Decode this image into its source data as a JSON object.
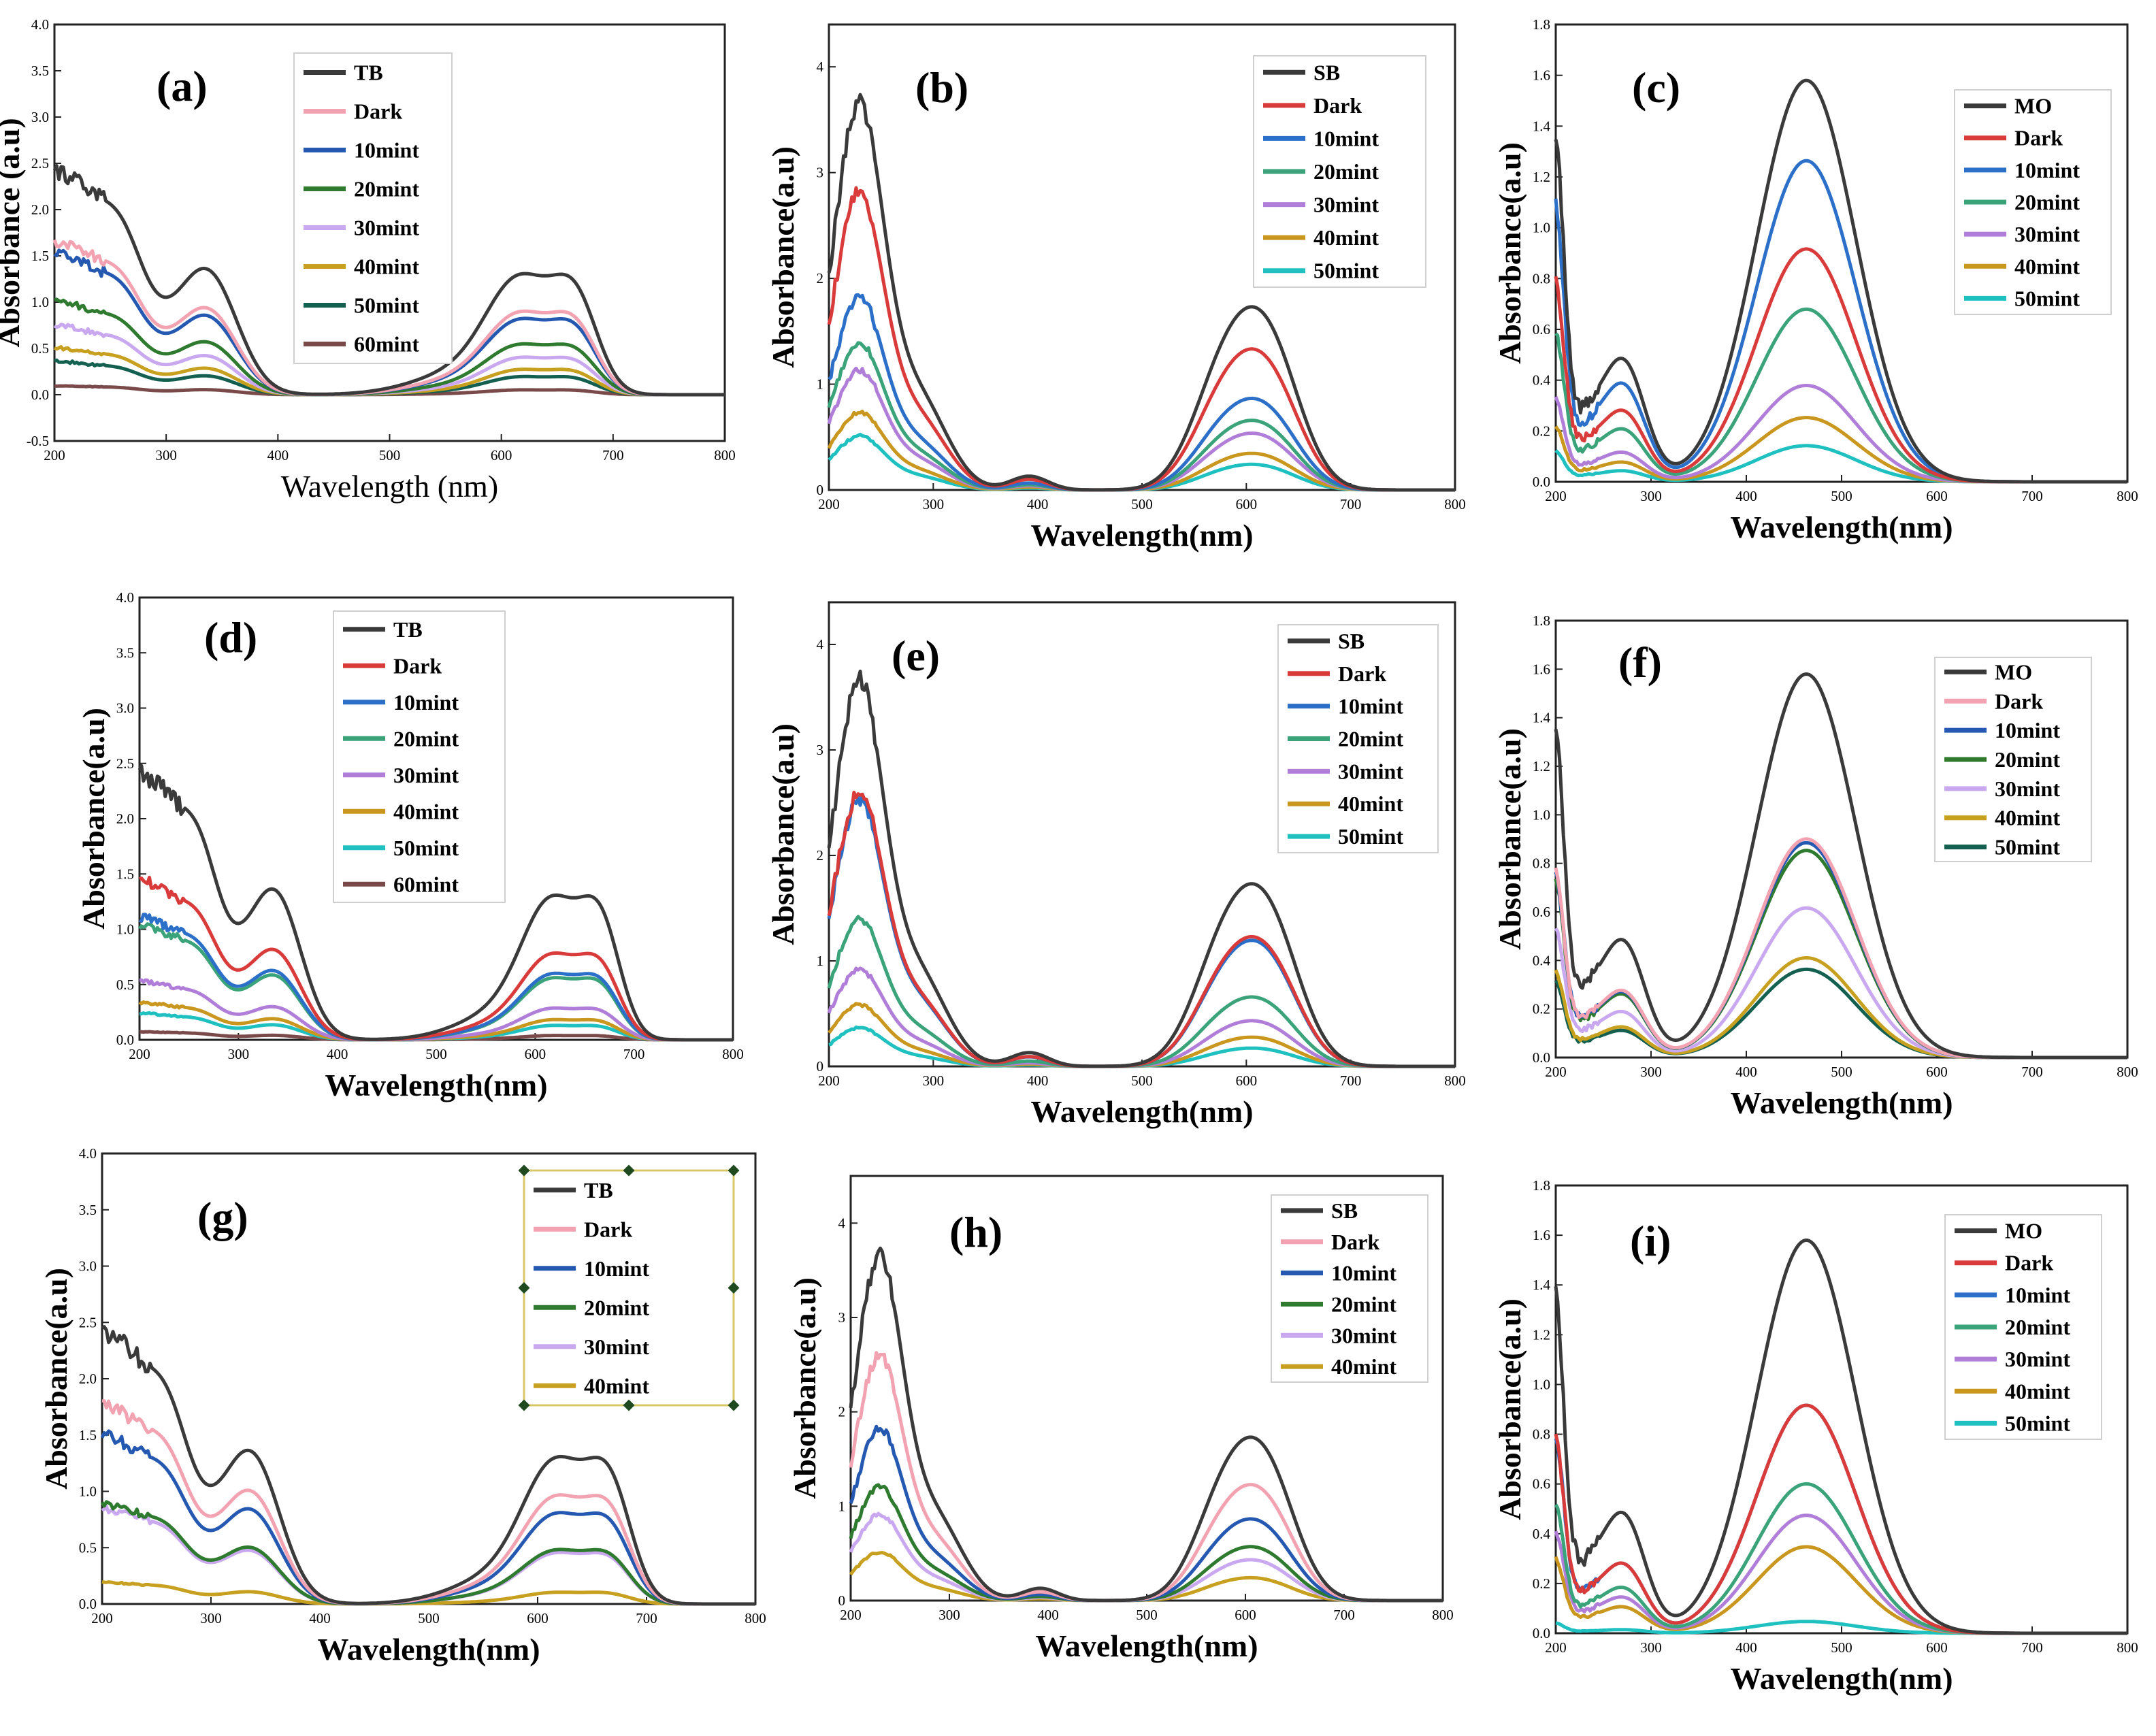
{
  "figure": {
    "description_free": true
  },
  "chart_data": [
    {
      "type": "line",
      "panel_label": "(a)",
      "dye": "TB",
      "xlabel": "Wavelength (nm)",
      "ylabel": "Absorbance (a.u)",
      "xlim": [
        200,
        800
      ],
      "ylim": [
        -0.5,
        4.0
      ],
      "xticks": [
        200,
        300,
        400,
        500,
        600,
        700,
        800
      ],
      "yticks": [
        -0.5,
        0.0,
        0.5,
        1.0,
        1.5,
        2.0,
        2.5,
        3.0,
        3.5,
        4.0
      ],
      "ytick_labels": [
        "-0.5",
        "0.0",
        "0.5",
        "1.0",
        "1.5",
        "2.0",
        "2.5",
        "3.0",
        "3.5",
        "4.0"
      ],
      "series": [
        {
          "name": "TB",
          "color": "#3a3a3a",
          "scale": 1.0
        },
        {
          "name": "Dark",
          "color": "#f2a2b0",
          "scale": 0.69
        },
        {
          "name": "10mint",
          "color": "#2558b0",
          "scale": 0.63
        },
        {
          "name": "20mint",
          "color": "#2e7a2e",
          "scale": 0.42
        },
        {
          "name": "30mint",
          "color": "#c9a8f0",
          "scale": 0.31
        },
        {
          "name": "40mint",
          "color": "#c8a020",
          "scale": 0.21
        },
        {
          "name": "50mint",
          "color": "#136050",
          "scale": 0.15
        },
        {
          "name": "60mint",
          "color": "#7a4a4a",
          "scale": 0.04
        }
      ]
    },
    {
      "type": "line",
      "panel_label": "(b)",
      "dye": "SB",
      "xlabel": "Wavelength(nm)",
      "ylabel": "Absorbance(a.u)",
      "xlim": [
        200,
        800
      ],
      "ylim": [
        0,
        4.4
      ],
      "xticks": [
        200,
        300,
        400,
        500,
        600,
        700,
        800
      ],
      "yticks": [
        0,
        1,
        2,
        3,
        4
      ],
      "ytick_labels": [
        "0",
        "1",
        "2",
        "3",
        "4"
      ],
      "series": [
        {
          "name": "SB",
          "color": "#3a3a3a",
          "scale": 1.0
        },
        {
          "name": "Dark",
          "color": "#d93a3a",
          "scale": 0.77
        },
        {
          "name": "10mint",
          "color": "#2b6fc8",
          "scale": 0.5
        },
        {
          "name": "20mint",
          "color": "#3aa37a",
          "scale": 0.38
        },
        {
          "name": "30mint",
          "color": "#b07ed8",
          "scale": 0.31
        },
        {
          "name": "40mint",
          "color": "#c9961e",
          "scale": 0.2
        },
        {
          "name": "50mint",
          "color": "#1fc0c0",
          "scale": 0.14
        }
      ]
    },
    {
      "type": "line",
      "panel_label": "(c)",
      "dye": "MO",
      "xlabel": "Wavelength(nm)",
      "ylabel": "Absorbance(a.u)",
      "xlim": [
        200,
        800
      ],
      "ylim": [
        0,
        1.8
      ],
      "xticks": [
        200,
        300,
        400,
        500,
        600,
        700,
        800
      ],
      "yticks": [
        0.0,
        0.2,
        0.4,
        0.6,
        0.8,
        1.0,
        1.2,
        1.4,
        1.6,
        1.8
      ],
      "ytick_labels": [
        "0.0",
        "0.2",
        "0.4",
        "0.6",
        "0.8",
        "1.0",
        "1.2",
        "1.4",
        "1.6",
        "1.8"
      ],
      "series": [
        {
          "name": "MO",
          "color": "#3a3a3a",
          "scale": 1.0
        },
        {
          "name": "Dark",
          "color": "#d93a3a",
          "scale": 0.58
        },
        {
          "name": "10mint",
          "color": "#2b6fc8",
          "scale": 0.8
        },
        {
          "name": "20mint",
          "color": "#3aa37a",
          "scale": 0.43
        },
        {
          "name": "30mint",
          "color": "#b07ed8",
          "scale": 0.24
        },
        {
          "name": "40mint",
          "color": "#c9961e",
          "scale": 0.16
        },
        {
          "name": "50mint",
          "color": "#1fc0c0",
          "scale": 0.09
        }
      ]
    },
    {
      "type": "line",
      "panel_label": "(d)",
      "dye": "TB",
      "xlabel": "Wavelength(nm)",
      "ylabel": "Absorbance(a.u)",
      "xlim": [
        200,
        800
      ],
      "ylim": [
        0,
        4.0
      ],
      "xticks": [
        200,
        300,
        400,
        500,
        600,
        700,
        800
      ],
      "yticks": [
        0.0,
        0.5,
        1.0,
        1.5,
        2.0,
        2.5,
        3.0,
        3.5,
        4.0
      ],
      "ytick_labels": [
        "0.0",
        "0.5",
        "1.0",
        "1.5",
        "2.0",
        "2.5",
        "3.0",
        "3.5",
        "4.0"
      ],
      "series": [
        {
          "name": "TB",
          "color": "#3a3a3a",
          "scale": 1.0
        },
        {
          "name": "Dark",
          "color": "#d93a3a",
          "scale": 0.6
        },
        {
          "name": "10mint",
          "color": "#2b6fc8",
          "scale": 0.46
        },
        {
          "name": "20mint",
          "color": "#3aa37a",
          "scale": 0.43
        },
        {
          "name": "30mint",
          "color": "#b07ed8",
          "scale": 0.22
        },
        {
          "name": "40mint",
          "color": "#c9961e",
          "scale": 0.14
        },
        {
          "name": "50mint",
          "color": "#1fc0c0",
          "scale": 0.1
        },
        {
          "name": "60mint",
          "color": "#7a4a4a",
          "scale": 0.03
        }
      ]
    },
    {
      "type": "line",
      "panel_label": "(e)",
      "dye": "SB",
      "xlabel": "Wavelength(nm)",
      "ylabel": "Absorbance(a.u)",
      "xlim": [
        200,
        800
      ],
      "ylim": [
        0,
        4.4
      ],
      "xticks": [
        200,
        300,
        400,
        500,
        600,
        700,
        800
      ],
      "yticks": [
        0,
        1,
        2,
        3,
        4
      ],
      "ytick_labels": [
        "0",
        "1",
        "2",
        "3",
        "4"
      ],
      "series": [
        {
          "name": "SB",
          "color": "#3a3a3a",
          "scale": 1.0
        },
        {
          "name": "Dark",
          "color": "#d93a3a",
          "scale": 0.71
        },
        {
          "name": "10mint",
          "color": "#2b6fc8",
          "scale": 0.69
        },
        {
          "name": "20mint",
          "color": "#3aa37a",
          "scale": 0.38
        },
        {
          "name": "30mint",
          "color": "#b07ed8",
          "scale": 0.25
        },
        {
          "name": "40mint",
          "color": "#c9961e",
          "scale": 0.16
        },
        {
          "name": "50mint",
          "color": "#1fc0c0",
          "scale": 0.1
        }
      ]
    },
    {
      "type": "line",
      "panel_label": "(f)",
      "dye": "MO",
      "xlabel": "Wavelength(nm)",
      "ylabel": "Absorbance(a.u)",
      "xlim": [
        200,
        800
      ],
      "ylim": [
        0,
        1.8
      ],
      "xticks": [
        200,
        300,
        400,
        500,
        600,
        700,
        800
      ],
      "yticks": [
        0.0,
        0.2,
        0.4,
        0.6,
        0.8,
        1.0,
        1.2,
        1.4,
        1.6,
        1.8
      ],
      "ytick_labels": [
        "0.0",
        "0.2",
        "0.4",
        "0.6",
        "0.8",
        "1.0",
        "1.2",
        "1.4",
        "1.6",
        "1.8"
      ],
      "series": [
        {
          "name": "MO",
          "color": "#3a3a3a",
          "scale": 1.0
        },
        {
          "name": "Dark",
          "color": "#f2a2b0",
          "scale": 0.57
        },
        {
          "name": "10mint",
          "color": "#2558b0",
          "scale": 0.56
        },
        {
          "name": "20mint",
          "color": "#2e7a2e",
          "scale": 0.54
        },
        {
          "name": "30mint",
          "color": "#c9a8f0",
          "scale": 0.39
        },
        {
          "name": "40mint",
          "color": "#c8a020",
          "scale": 0.26
        },
        {
          "name": "50mint",
          "color": "#136050",
          "scale": 0.23
        }
      ]
    },
    {
      "type": "line",
      "panel_label": "(g)",
      "dye": "TB",
      "xlabel": "Wavelength(nm)",
      "ylabel": "Absorbance(a.u)",
      "xlim": [
        200,
        800
      ],
      "ylim": [
        0,
        4.0
      ],
      "xticks": [
        200,
        300,
        400,
        500,
        600,
        700,
        800
      ],
      "yticks": [
        0.0,
        0.5,
        1.0,
        1.5,
        2.0,
        2.5,
        3.0,
        3.5,
        4.0
      ],
      "ytick_labels": [
        "0.0",
        "0.5",
        "1.0",
        "1.5",
        "2.0",
        "2.5",
        "3.0",
        "3.5",
        "4.0"
      ],
      "series": [
        {
          "name": "TB",
          "color": "#3a3a3a",
          "scale": 1.0
        },
        {
          "name": "Dark",
          "color": "#f2a2b0",
          "scale": 0.74
        },
        {
          "name": "10mint",
          "color": "#2558b0",
          "scale": 0.62
        },
        {
          "name": "20mint",
          "color": "#2e7a2e",
          "scale": 0.37
        },
        {
          "name": "30mint",
          "color": "#c9a8f0",
          "scale": 0.35
        },
        {
          "name": "40mint",
          "color": "#c8a020",
          "scale": 0.08
        }
      ]
    },
    {
      "type": "line",
      "panel_label": "(h)",
      "dye": "SB",
      "xlabel": "Wavelength(nm)",
      "ylabel": "Absorbance(a.u)",
      "xlim": [
        200,
        800
      ],
      "ylim": [
        0,
        4.5
      ],
      "xticks": [
        200,
        300,
        400,
        500,
        600,
        700,
        800
      ],
      "yticks": [
        0,
        1,
        2,
        3,
        4
      ],
      "ytick_labels": [
        "0",
        "1",
        "2",
        "3",
        "4"
      ],
      "series": [
        {
          "name": "SB",
          "color": "#3a3a3a",
          "scale": 1.0
        },
        {
          "name": "Dark",
          "color": "#f2a2b0",
          "scale": 0.71
        },
        {
          "name": "10mint",
          "color": "#2558b0",
          "scale": 0.5
        },
        {
          "name": "20mint",
          "color": "#2e7a2e",
          "scale": 0.33
        },
        {
          "name": "30mint",
          "color": "#c9a8f0",
          "scale": 0.25
        },
        {
          "name": "40mint",
          "color": "#c8a020",
          "scale": 0.14
        }
      ]
    },
    {
      "type": "line",
      "panel_label": "(i)",
      "dye": "MO",
      "xlabel": "Wavelength(nm)",
      "ylabel": "Absorbance(a.u)",
      "xlim": [
        200,
        800
      ],
      "ylim": [
        0,
        1.8
      ],
      "xticks": [
        200,
        300,
        400,
        500,
        600,
        700,
        800
      ],
      "yticks": [
        0.0,
        0.2,
        0.4,
        0.6,
        0.8,
        1.0,
        1.2,
        1.4,
        1.6,
        1.8
      ],
      "ytick_labels": [
        "0.0",
        "0.2",
        "0.4",
        "0.6",
        "0.8",
        "1.0",
        "1.2",
        "1.4",
        "1.6",
        "1.8"
      ],
      "series": [
        {
          "name": "MO",
          "color": "#3a3a3a",
          "scale": 1.0
        },
        {
          "name": "Dark",
          "color": "#d93a3a",
          "scale": 0.58
        },
        {
          "name": "10mint",
          "color": "#2b6fc8",
          "scale": 0.58
        },
        {
          "name": "20mint",
          "color": "#3aa37a",
          "scale": 0.38
        },
        {
          "name": "30mint",
          "color": "#b07ed8",
          "scale": 0.3
        },
        {
          "name": "40mint",
          "color": "#c9961e",
          "scale": 0.22
        },
        {
          "name": "50mint",
          "color": "#1fc0c0",
          "scale": 0.03
        }
      ]
    }
  ]
}
